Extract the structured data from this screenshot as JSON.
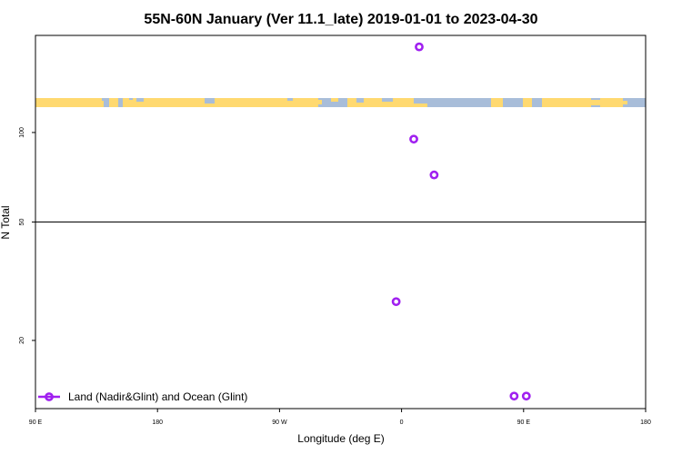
{
  "chart_data": {
    "type": "scatter",
    "title": "55N-60N January (Ver 11.1_late)   2019-01-01 to 2023-04-30",
    "xlabel": "Longitude (deg E)",
    "ylabel": "N Total",
    "x_axis": {
      "start": 90,
      "end": 450,
      "ticks": [
        {
          "value": 90,
          "label": "90 E"
        },
        {
          "value": 180,
          "label": "180"
        },
        {
          "value": 270,
          "label": "90 W"
        },
        {
          "value": 360,
          "label": "0"
        },
        {
          "value": 450,
          "label": "90 E"
        },
        {
          "value": 540,
          "label": "180"
        }
      ]
    },
    "y_axis": {
      "scale": "log",
      "ylim": [
        11.8,
        212
      ],
      "ticks": [
        {
          "value": 20,
          "label": "20"
        },
        {
          "value": 50,
          "label": "50"
        },
        {
          "value": 100,
          "label": "100"
        }
      ]
    },
    "xlim_display": [
      90,
      540
    ],
    "reference_line_y": 50,
    "map_strip": {
      "land_color": "#ffd970",
      "ocean_color": "#a8bdd9"
    },
    "series": [
      {
        "name": "Land (Nadir&Glint) and Ocean (Glint)",
        "color": "#a020f0",
        "marker": "open-circle",
        "points": [
          {
            "x": 373,
            "y": 194
          },
          {
            "x": 369,
            "y": 95
          },
          {
            "x": 384,
            "y": 72
          },
          {
            "x": 356,
            "y": 27
          },
          {
            "x": 443,
            "y": 13
          },
          {
            "x": 452,
            "y": 13
          }
        ]
      }
    ],
    "legend_position": "bottom-left",
    "grid": false
  }
}
